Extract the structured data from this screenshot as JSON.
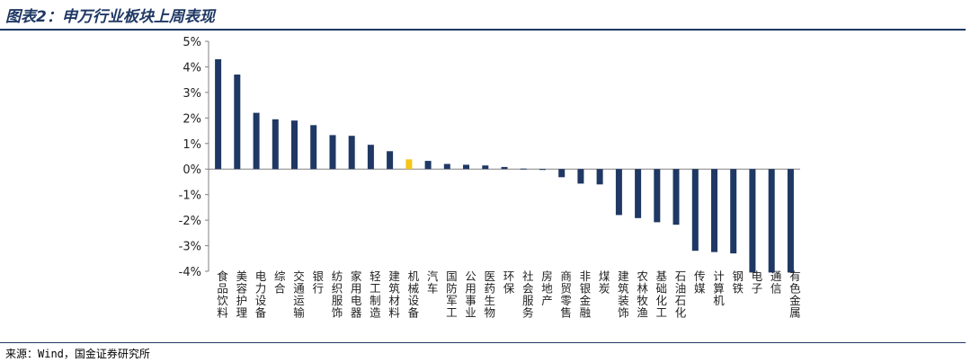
{
  "title": "图表2：申万行业板块上周表现",
  "source": "来源：Wind，国金证券研究所",
  "colors": {
    "bar": "#1f3864",
    "highlight": "#f5c518",
    "axis": "#808080",
    "rule": "#1f3864"
  },
  "chart_data": {
    "type": "bar",
    "categories": [
      "食品饮料",
      "美容护理",
      "电力设备",
      "综合",
      "交通运输",
      "银行",
      "纺织服饰",
      "家用电器",
      "轻工制造",
      "建筑材料",
      "机械设备",
      "汽车",
      "国防军工",
      "公用事业",
      "医药生物",
      "环保",
      "社会服务",
      "房地产",
      "商贸零售",
      "非银金融",
      "煤炭",
      "建筑装饰",
      "农林牧渔",
      "基础化工",
      "石油石化",
      "传媒",
      "计算机",
      "钢铁",
      "电子",
      "通信",
      "有色金属"
    ],
    "values": [
      4.3,
      3.7,
      2.2,
      1.95,
      1.9,
      1.72,
      1.33,
      1.3,
      0.95,
      0.7,
      0.38,
      0.32,
      0.2,
      0.17,
      0.14,
      0.08,
      0.02,
      -0.02,
      -0.32,
      -0.57,
      -0.6,
      -1.8,
      -1.92,
      -2.08,
      -2.18,
      -3.2,
      -3.25,
      -3.3,
      -4.05,
      -4.05,
      -4.05
    ],
    "highlight_index": 10,
    "y_tick_labels": [
      "5%",
      "4%",
      "3%",
      "2%",
      "1%",
      "0%",
      "-1%",
      "-2%",
      "-3%",
      "-4%"
    ],
    "ylim": [
      -4,
      5
    ],
    "grid": false,
    "legend": "none"
  }
}
